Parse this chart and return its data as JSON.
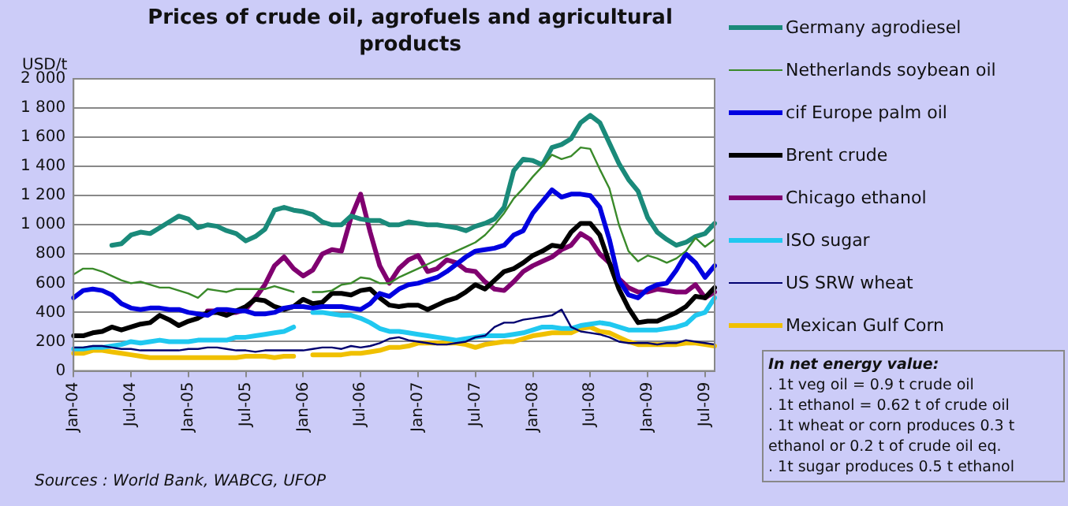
{
  "chart_data": {
    "type": "line",
    "title": "Prices of crude oil, agrofuels and agricultural products",
    "ylabel": "USD/t",
    "categories": [
      "Jan-04",
      null,
      null,
      null,
      null,
      null,
      "Jul-04",
      null,
      null,
      null,
      null,
      null,
      "Jan-05",
      null,
      null,
      null,
      null,
      null,
      "Jul-05",
      null,
      null,
      null,
      null,
      null,
      "Jan-06",
      null,
      null,
      null,
      null,
      null,
      "Jul-06",
      null,
      null,
      null,
      null,
      null,
      "Jan-07",
      null,
      null,
      null,
      null,
      null,
      "Jul-07",
      null,
      null,
      null,
      null,
      null,
      "Jan-08",
      null,
      null,
      null,
      null,
      null,
      "Jul-08",
      null,
      null,
      null,
      null,
      null,
      "Jan-09",
      null,
      null,
      null,
      null,
      null,
      "Jul-09",
      null
    ],
    "series": [
      {
        "name": "Germany agrodiesel",
        "color": "#1a8a7a",
        "values": [
          null,
          null,
          null,
          null,
          860,
          870,
          930,
          950,
          940,
          980,
          1020,
          1060,
          1040,
          980,
          1000,
          990,
          960,
          940,
          890,
          920,
          970,
          1100,
          1120,
          1100,
          1090,
          1070,
          1020,
          1000,
          1000,
          1060,
          1040,
          1030,
          1030,
          1000,
          1000,
          1020,
          1010,
          1000,
          1000,
          990,
          980,
          960,
          990,
          1010,
          1040,
          1120,
          1370,
          1450,
          1440,
          1410,
          1530,
          1550,
          1590,
          1700,
          1750,
          1700,
          1560,
          1420,
          1310,
          1230,
          1050,
          950,
          900,
          860,
          880,
          920,
          940,
          1010
        ]
      },
      {
        "name": "Netherlands soybean oil",
        "color": "#3a8a2a",
        "values": [
          660,
          700,
          700,
          680,
          650,
          620,
          600,
          610,
          590,
          570,
          570,
          550,
          530,
          500,
          560,
          550,
          540,
          560,
          560,
          560,
          560,
          580,
          560,
          540,
          null,
          540,
          540,
          550,
          590,
          600,
          640,
          630,
          600,
          600,
          640,
          670,
          700,
          730,
          760,
          790,
          820,
          850,
          880,
          930,
          1000,
          1080,
          1180,
          1250,
          1330,
          1400,
          1480,
          1450,
          1470,
          1530,
          1520,
          1380,
          1250,
          1000,
          820,
          750,
          790,
          770,
          740,
          770,
          820,
          910,
          850,
          900
        ]
      },
      {
        "name": "cif Europe palm oil",
        "color": "#0000e0",
        "values": [
          500,
          550,
          560,
          550,
          520,
          460,
          430,
          420,
          430,
          430,
          420,
          420,
          400,
          390,
          380,
          420,
          420,
          410,
          410,
          390,
          390,
          400,
          430,
          440,
          440,
          430,
          440,
          440,
          440,
          430,
          420,
          460,
          530,
          510,
          560,
          590,
          600,
          620,
          640,
          680,
          730,
          780,
          820,
          830,
          840,
          860,
          930,
          960,
          1080,
          1160,
          1240,
          1190,
          1210,
          1210,
          1200,
          1120,
          900,
          620,
          520,
          500,
          560,
          590,
          600,
          690,
          800,
          740,
          640,
          720
        ]
      },
      {
        "name": "Brent crude",
        "color": "#000000",
        "values": [
          240,
          240,
          260,
          270,
          300,
          280,
          300,
          320,
          330,
          380,
          350,
          310,
          340,
          360,
          400,
          400,
          380,
          410,
          440,
          490,
          480,
          440,
          420,
          440,
          490,
          460,
          470,
          530,
          530,
          520,
          550,
          560,
          500,
          450,
          440,
          450,
          450,
          420,
          450,
          480,
          500,
          540,
          590,
          560,
          620,
          680,
          700,
          740,
          790,
          820,
          860,
          850,
          950,
          1010,
          1010,
          930,
          740,
          560,
          430,
          330,
          340,
          340,
          370,
          400,
          440,
          510,
          500,
          570
        ]
      },
      {
        "name": "Chicago ethanol",
        "color": "#800070",
        "values": [
          null,
          null,
          null,
          null,
          null,
          null,
          null,
          null,
          null,
          null,
          null,
          null,
          null,
          null,
          410,
          410,
          400,
          400,
          420,
          500,
          590,
          720,
          780,
          700,
          650,
          690,
          800,
          830,
          820,
          1050,
          1210,
          950,
          720,
          600,
          700,
          760,
          790,
          680,
          700,
          760,
          740,
          690,
          680,
          610,
          560,
          550,
          610,
          680,
          720,
          750,
          780,
          830,
          860,
          940,
          900,
          800,
          740,
          630,
          570,
          540,
          540,
          560,
          550,
          540,
          540,
          590,
          500,
          540
        ]
      },
      {
        "name": "ISO sugar",
        "color": "#20c8f0",
        "values": [
          150,
          150,
          160,
          160,
          170,
          180,
          200,
          190,
          200,
          210,
          200,
          200,
          200,
          210,
          210,
          210,
          210,
          230,
          230,
          240,
          250,
          260,
          270,
          300,
          null,
          400,
          400,
          390,
          380,
          380,
          360,
          330,
          290,
          270,
          270,
          260,
          250,
          240,
          230,
          220,
          210,
          220,
          230,
          240,
          240,
          240,
          250,
          260,
          280,
          300,
          300,
          290,
          290,
          310,
          320,
          330,
          320,
          300,
          280,
          280,
          280,
          280,
          290,
          300,
          320,
          380,
          400,
          500
        ]
      },
      {
        "name": "US SRW wheat",
        "color": "#000070",
        "values": [
          160,
          160,
          170,
          170,
          160,
          150,
          150,
          140,
          140,
          140,
          140,
          140,
          150,
          150,
          160,
          160,
          150,
          140,
          140,
          130,
          140,
          140,
          140,
          140,
          140,
          150,
          160,
          160,
          150,
          170,
          160,
          170,
          190,
          220,
          230,
          210,
          200,
          190,
          180,
          180,
          190,
          200,
          230,
          240,
          300,
          330,
          330,
          350,
          360,
          370,
          380,
          420,
          300,
          270,
          260,
          250,
          230,
          200,
          190,
          190,
          190,
          180,
          190,
          190,
          210,
          200,
          190,
          180
        ]
      },
      {
        "name": "Mexican Gulf Corn",
        "color": "#f0c000",
        "values": [
          120,
          120,
          140,
          140,
          130,
          120,
          110,
          100,
          90,
          90,
          90,
          90,
          90,
          90,
          90,
          90,
          90,
          90,
          100,
          100,
          100,
          90,
          100,
          100,
          null,
          110,
          110,
          110,
          110,
          120,
          120,
          130,
          140,
          160,
          160,
          170,
          190,
          190,
          190,
          190,
          190,
          180,
          160,
          180,
          190,
          200,
          200,
          220,
          240,
          250,
          260,
          260,
          260,
          290,
          300,
          270,
          260,
          230,
          200,
          180,
          180,
          180,
          180,
          180,
          190,
          190,
          180,
          170
        ]
      }
    ],
    "ylim": [
      0,
      2000
    ],
    "yticks": [
      0,
      200,
      400,
      600,
      800,
      {
        "value": 1000,
        "label": "1 000"
      },
      {
        "value": 1200,
        "label": "1 200"
      },
      {
        "value": 1400,
        "label": "1 400"
      },
      {
        "value": 1600,
        "label": "1 600"
      },
      {
        "value": 1800,
        "label": "1 800"
      },
      {
        "value": 2000,
        "label": "2 000"
      }
    ],
    "grid": "y",
    "legend": "right",
    "marker": "none",
    "annotations": [
      "In net energy value:",
      ". 1t veg oil = 0.9 t crude oil",
      ". 1t ethanol = 0.62 t of crude oil",
      ". 1t wheat or corn produces 0.3 t ethanol or 0.2 t of crude oil eq.",
      ". 1t sugar produces 0.5 t ethanol",
      "Sources : World Bank, WABCG, UFOP"
    ]
  }
}
